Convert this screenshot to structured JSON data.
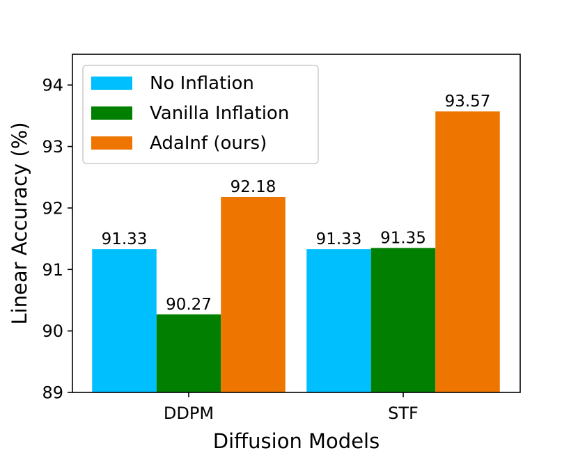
{
  "chart_data": {
    "type": "bar",
    "title": "",
    "xlabel": "Diffusion Models",
    "ylabel": "Linear Accuracy (%)",
    "categories": [
      "DDPM",
      "STF"
    ],
    "series": [
      {
        "name": "No Inflation",
        "color": "#00BFFF",
        "values": [
          91.33,
          91.33
        ],
        "labels": [
          "91.33",
          "91.33"
        ]
      },
      {
        "name": "Vanilla Inflation",
        "color": "#007F00",
        "values": [
          90.27,
          91.35
        ],
        "labels": [
          "90.27",
          "91.35"
        ]
      },
      {
        "name": "AdaInf (ours)",
        "color": "#EE7600",
        "values": [
          92.18,
          93.57
        ],
        "labels": [
          "92.18",
          "93.57"
        ]
      }
    ],
    "ylim": [
      89,
      94.5
    ],
    "yticks": [
      89,
      90,
      91,
      92,
      93,
      94
    ],
    "grid": false,
    "legend_position": "top-left"
  }
}
